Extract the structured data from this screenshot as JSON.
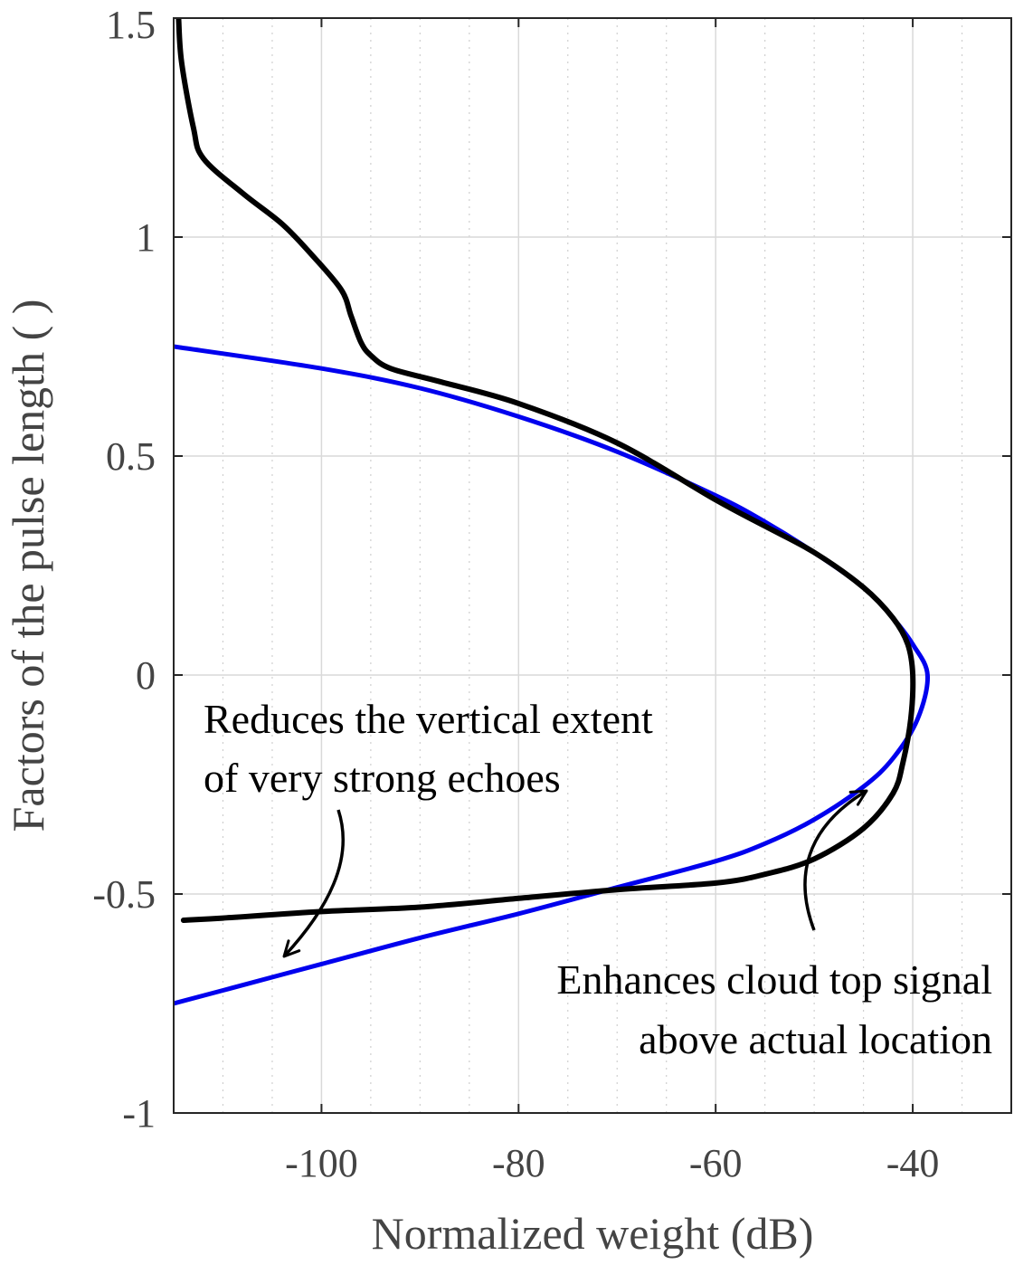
{
  "chart_data": {
    "type": "line",
    "title": "",
    "xlabel": "Normalized weight (dB)",
    "ylabel": "Factors of the pulse length ( )",
    "xlim": [
      -115,
      -30
    ],
    "ylim": [
      -1,
      1.5
    ],
    "xticks": [
      -100,
      -80,
      -60,
      -40
    ],
    "xtick_labels": [
      "-100",
      "-80",
      "-60",
      "-40"
    ],
    "yticks": [
      -1,
      -0.5,
      0,
      0.5,
      1,
      1.5
    ],
    "ytick_labels": [
      "-1",
      "-0.5",
      "0",
      "0.5",
      "1",
      "1.5"
    ],
    "grid": true,
    "minor_grid": true,
    "legend": "none",
    "series": [
      {
        "color": "#0000ee",
        "points": [
          [
            -115,
            0.75
          ],
          [
            -100,
            0.7
          ],
          [
            -90,
            0.655
          ],
          [
            -80,
            0.59
          ],
          [
            -70,
            0.51
          ],
          [
            -60,
            0.41
          ],
          [
            -55,
            0.35
          ],
          [
            -50,
            0.28
          ],
          [
            -45,
            0.2
          ],
          [
            -42,
            0.13
          ],
          [
            -40,
            0.07
          ],
          [
            -38.5,
            0.0
          ],
          [
            -39.5,
            -0.1
          ],
          [
            -42,
            -0.19
          ],
          [
            -45,
            -0.255
          ],
          [
            -50,
            -0.33
          ],
          [
            -55,
            -0.385
          ],
          [
            -60,
            -0.425
          ],
          [
            -70,
            -0.485
          ],
          [
            -80,
            -0.545
          ],
          [
            -90,
            -0.6
          ],
          [
            -100,
            -0.66
          ],
          [
            -110,
            -0.72
          ],
          [
            -115,
            -0.75
          ]
        ]
      },
      {
        "color": "#000000",
        "points": [
          [
            -114.5,
            1.5
          ],
          [
            -114.2,
            1.4
          ],
          [
            -113,
            1.25
          ],
          [
            -112,
            1.18
          ],
          [
            -108,
            1.1
          ],
          [
            -104,
            1.03
          ],
          [
            -101,
            0.96
          ],
          [
            -98,
            0.88
          ],
          [
            -97,
            0.82
          ],
          [
            -96,
            0.76
          ],
          [
            -95,
            0.73
          ],
          [
            -93,
            0.7
          ],
          [
            -88,
            0.67
          ],
          [
            -80,
            0.62
          ],
          [
            -70,
            0.53
          ],
          [
            -60,
            0.4
          ],
          [
            -55,
            0.34
          ],
          [
            -50,
            0.28
          ],
          [
            -45,
            0.2
          ],
          [
            -42,
            0.13
          ],
          [
            -40.5,
            0.07
          ],
          [
            -40,
            0.0
          ],
          [
            -40.2,
            -0.1
          ],
          [
            -41,
            -0.2
          ],
          [
            -42,
            -0.27
          ],
          [
            -45,
            -0.35
          ],
          [
            -50,
            -0.42
          ],
          [
            -55,
            -0.455
          ],
          [
            -60,
            -0.475
          ],
          [
            -70,
            -0.49
          ],
          [
            -80,
            -0.51
          ],
          [
            -90,
            -0.53
          ],
          [
            -100,
            -0.54
          ],
          [
            -110,
            -0.555
          ],
          [
            -114,
            -0.56
          ]
        ]
      }
    ],
    "annotations": [
      {
        "lines": [
          "Reduces the vertical extent",
          "of very strong echoes"
        ]
      },
      {
        "lines": [
          "Enhances cloud top signal",
          "above actual location"
        ]
      }
    ]
  }
}
